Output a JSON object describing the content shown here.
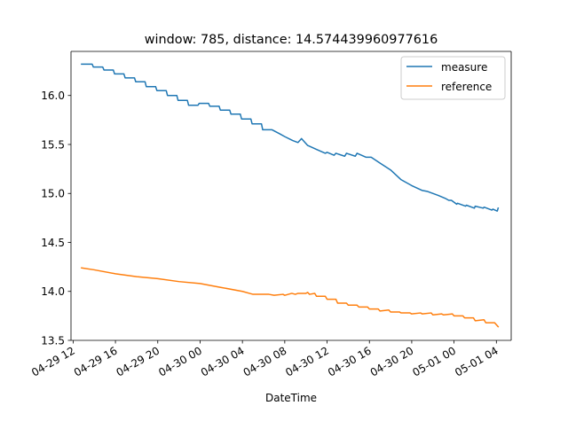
{
  "colors": {
    "measure": "#1f77b4",
    "reference": "#ff7f0e",
    "axis": "#000000",
    "legend_border": "#cccccc"
  },
  "chart_data": {
    "type": "line",
    "title": "window: 785, distance: 14.574439960977616",
    "xlabel": "DateTime",
    "ylabel": "",
    "grid": false,
    "legend_placement": "top-right",
    "xlim": [
      "2024-04-29T11:48",
      "2024-05-01T05:24"
    ],
    "ylim": [
      13.5,
      16.45
    ],
    "x_ticks": [
      {
        "t": "2024-04-29T12:00",
        "label": "04-29 12"
      },
      {
        "t": "2024-04-29T16:00",
        "label": "04-29 16"
      },
      {
        "t": "2024-04-29T20:00",
        "label": "04-29 20"
      },
      {
        "t": "2024-04-30T00:00",
        "label": "04-30 00"
      },
      {
        "t": "2024-04-30T04:00",
        "label": "04-30 04"
      },
      {
        "t": "2024-04-30T08:00",
        "label": "04-30 08"
      },
      {
        "t": "2024-04-30T12:00",
        "label": "04-30 12"
      },
      {
        "t": "2024-04-30T16:00",
        "label": "04-30 16"
      },
      {
        "t": "2024-04-30T20:00",
        "label": "04-30 20"
      },
      {
        "t": "2024-05-01T00:00",
        "label": "05-01 00"
      },
      {
        "t": "2024-05-01T04:00",
        "label": "05-01 04"
      }
    ],
    "y_ticks": [
      {
        "v": 13.5,
        "label": "13.5"
      },
      {
        "v": 14.0,
        "label": "14.0"
      },
      {
        "v": 14.5,
        "label": "14.5"
      },
      {
        "v": 15.0,
        "label": "15.0"
      },
      {
        "v": 15.5,
        "label": "15.5"
      },
      {
        "v": 16.0,
        "label": "16.0"
      }
    ],
    "series": [
      {
        "name": "measure",
        "points": [
          [
            "2024-04-29T12:48",
            16.32
          ],
          [
            "2024-04-29T13:48",
            16.32
          ],
          [
            "2024-04-29T13:55",
            16.29
          ],
          [
            "2024-04-29T14:48",
            16.29
          ],
          [
            "2024-04-29T14:55",
            16.26
          ],
          [
            "2024-04-29T15:48",
            16.26
          ],
          [
            "2024-04-29T15:55",
            16.22
          ],
          [
            "2024-04-29T16:48",
            16.22
          ],
          [
            "2024-04-29T16:55",
            16.18
          ],
          [
            "2024-04-29T17:48",
            16.18
          ],
          [
            "2024-04-29T17:55",
            16.14
          ],
          [
            "2024-04-29T18:48",
            16.14
          ],
          [
            "2024-04-29T18:55",
            16.09
          ],
          [
            "2024-04-29T19:48",
            16.09
          ],
          [
            "2024-04-29T19:55",
            16.05
          ],
          [
            "2024-04-29T20:48",
            16.05
          ],
          [
            "2024-04-29T20:55",
            16.0
          ],
          [
            "2024-04-29T21:48",
            16.0
          ],
          [
            "2024-04-29T21:55",
            15.95
          ],
          [
            "2024-04-29T22:48",
            15.95
          ],
          [
            "2024-04-29T22:55",
            15.9
          ],
          [
            "2024-04-29T23:48",
            15.9
          ],
          [
            "2024-04-29T23:55",
            15.92
          ],
          [
            "2024-04-30T00:48",
            15.92
          ],
          [
            "2024-04-30T00:55",
            15.89
          ],
          [
            "2024-04-30T01:48",
            15.89
          ],
          [
            "2024-04-30T01:55",
            15.85
          ],
          [
            "2024-04-30T02:48",
            15.85
          ],
          [
            "2024-04-30T02:55",
            15.81
          ],
          [
            "2024-04-30T03:48",
            15.81
          ],
          [
            "2024-04-30T03:55",
            15.76
          ],
          [
            "2024-04-30T04:48",
            15.76
          ],
          [
            "2024-04-30T04:55",
            15.71
          ],
          [
            "2024-04-30T05:48",
            15.71
          ],
          [
            "2024-04-30T05:55",
            15.65
          ],
          [
            "2024-04-30T06:48",
            15.65
          ],
          [
            "2024-04-30T07:30",
            15.61
          ],
          [
            "2024-04-30T08:00",
            15.58
          ],
          [
            "2024-04-30T08:45",
            15.54
          ],
          [
            "2024-04-30T09:15",
            15.52
          ],
          [
            "2024-04-30T09:35",
            15.56
          ],
          [
            "2024-04-30T10:10",
            15.49
          ],
          [
            "2024-04-30T11:00",
            15.45
          ],
          [
            "2024-04-30T11:50",
            15.41
          ],
          [
            "2024-04-30T12:00",
            15.42
          ],
          [
            "2024-04-30T12:40",
            15.39
          ],
          [
            "2024-04-30T12:50",
            15.41
          ],
          [
            "2024-04-30T13:40",
            15.38
          ],
          [
            "2024-04-30T13:50",
            15.41
          ],
          [
            "2024-04-30T14:40",
            15.38
          ],
          [
            "2024-04-30T14:50",
            15.41
          ],
          [
            "2024-04-30T15:40",
            15.37
          ],
          [
            "2024-04-30T16:10",
            15.37
          ],
          [
            "2024-04-30T17:00",
            15.31
          ],
          [
            "2024-04-30T18:00",
            15.24
          ],
          [
            "2024-04-30T19:00",
            15.14
          ],
          [
            "2024-04-30T20:00",
            15.08
          ],
          [
            "2024-04-30T21:00",
            15.03
          ],
          [
            "2024-04-30T21:30",
            15.02
          ],
          [
            "2024-04-30T22:30",
            14.98
          ],
          [
            "2024-04-30T23:10",
            14.95
          ],
          [
            "2024-04-30T23:30",
            14.93
          ],
          [
            "2024-04-30T23:45",
            14.93
          ],
          [
            "2024-05-01T00:15",
            14.89
          ],
          [
            "2024-05-01T00:20",
            14.9
          ],
          [
            "2024-05-01T01:05",
            14.87
          ],
          [
            "2024-05-01T01:10",
            14.88
          ],
          [
            "2024-05-01T01:55",
            14.85
          ],
          [
            "2024-05-01T02:00",
            14.87
          ],
          [
            "2024-05-01T02:45",
            14.85
          ],
          [
            "2024-05-01T02:50",
            14.86
          ],
          [
            "2024-05-01T03:35",
            14.83
          ],
          [
            "2024-05-01T03:40",
            14.84
          ],
          [
            "2024-05-01T04:05",
            14.82
          ],
          [
            "2024-05-01T04:10",
            14.85
          ]
        ]
      },
      {
        "name": "reference",
        "points": [
          [
            "2024-04-29T12:48",
            14.24
          ],
          [
            "2024-04-29T14:00",
            14.22
          ],
          [
            "2024-04-29T16:00",
            14.18
          ],
          [
            "2024-04-29T18:00",
            14.15
          ],
          [
            "2024-04-29T20:00",
            14.13
          ],
          [
            "2024-04-29T22:00",
            14.1
          ],
          [
            "2024-04-30T00:00",
            14.08
          ],
          [
            "2024-04-30T02:00",
            14.04
          ],
          [
            "2024-04-30T04:00",
            14.0
          ],
          [
            "2024-04-30T05:00",
            13.97
          ],
          [
            "2024-04-30T06:30",
            13.97
          ],
          [
            "2024-04-30T07:00",
            13.96
          ],
          [
            "2024-04-30T07:50",
            13.97
          ],
          [
            "2024-04-30T08:00",
            13.96
          ],
          [
            "2024-04-30T08:40",
            13.98
          ],
          [
            "2024-04-30T09:00",
            13.97
          ],
          [
            "2024-04-30T09:15",
            13.98
          ],
          [
            "2024-04-30T09:20",
            13.98
          ],
          [
            "2024-04-30T10:00",
            13.98
          ],
          [
            "2024-04-30T10:10",
            13.99
          ],
          [
            "2024-04-30T10:20",
            13.97
          ],
          [
            "2024-04-30T10:50",
            13.98
          ],
          [
            "2024-04-30T11:00",
            13.95
          ],
          [
            "2024-04-30T11:50",
            13.95
          ],
          [
            "2024-04-30T12:00",
            13.92
          ],
          [
            "2024-04-30T12:50",
            13.92
          ],
          [
            "2024-04-30T13:00",
            13.88
          ],
          [
            "2024-04-30T13:50",
            13.88
          ],
          [
            "2024-04-30T14:00",
            13.86
          ],
          [
            "2024-04-30T14:50",
            13.86
          ],
          [
            "2024-04-30T15:00",
            13.84
          ],
          [
            "2024-04-30T15:50",
            13.84
          ],
          [
            "2024-04-30T16:00",
            13.82
          ],
          [
            "2024-04-30T16:50",
            13.82
          ],
          [
            "2024-04-30T17:00",
            13.8
          ],
          [
            "2024-04-30T17:50",
            13.81
          ],
          [
            "2024-04-30T18:00",
            13.79
          ],
          [
            "2024-04-30T18:50",
            13.79
          ],
          [
            "2024-04-30T19:00",
            13.78
          ],
          [
            "2024-04-30T19:50",
            13.78
          ],
          [
            "2024-04-30T20:00",
            13.77
          ],
          [
            "2024-04-30T20:50",
            13.78
          ],
          [
            "2024-04-30T21:00",
            13.77
          ],
          [
            "2024-04-30T21:50",
            13.78
          ],
          [
            "2024-04-30T22:00",
            13.76
          ],
          [
            "2024-04-30T22:50",
            13.77
          ],
          [
            "2024-04-30T23:00",
            13.76
          ],
          [
            "2024-04-30T23:50",
            13.77
          ],
          [
            "2024-05-01T00:00",
            13.75
          ],
          [
            "2024-05-01T00:50",
            13.75
          ],
          [
            "2024-05-01T01:00",
            13.73
          ],
          [
            "2024-05-01T01:50",
            13.73
          ],
          [
            "2024-05-01T02:00",
            13.7
          ],
          [
            "2024-05-01T02:50",
            13.71
          ],
          [
            "2024-05-01T03:00",
            13.68
          ],
          [
            "2024-05-01T03:50",
            13.68
          ],
          [
            "2024-05-01T04:10",
            13.64
          ]
        ]
      }
    ]
  }
}
